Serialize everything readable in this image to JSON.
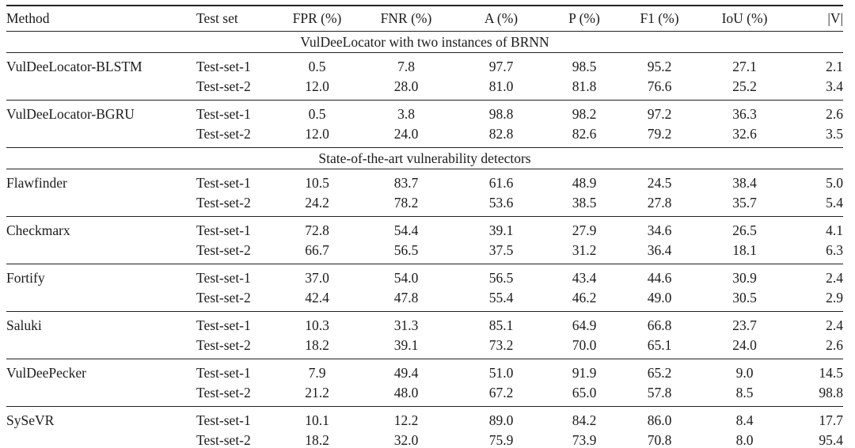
{
  "table": {
    "columns": [
      "Method",
      "Test set",
      "FPR (%)",
      "FNR (%)",
      "A (%)",
      "P (%)",
      "F1 (%)",
      "IoU (%)",
      "|V|"
    ],
    "metric_keys": [
      "fpr",
      "fnr",
      "a",
      "p",
      "f1",
      "iou",
      "v"
    ],
    "sections": [
      {
        "title": "VulDeeLocator with two instances of BRNN",
        "groups": [
          {
            "method": "VulDeeLocator-BLSTM",
            "rows": [
              [
                "Test-set-1",
                "0.5",
                "7.8",
                "97.7",
                "98.5",
                "95.2",
                "27.1",
                "2.1"
              ],
              [
                "Test-set-2",
                "12.0",
                "28.0",
                "81.0",
                "81.8",
                "76.6",
                "25.2",
                "3.4"
              ]
            ]
          },
          {
            "method": "VulDeeLocator-BGRU",
            "rows": [
              [
                "Test-set-1",
                "0.5",
                "3.8",
                "98.8",
                "98.2",
                "97.2",
                "36.3",
                "2.6"
              ],
              [
                "Test-set-2",
                "12.0",
                "24.0",
                "82.8",
                "82.6",
                "79.2",
                "32.6",
                "3.5"
              ]
            ]
          }
        ]
      },
      {
        "title": "State-of-the-art vulnerability detectors",
        "groups": [
          {
            "method": "Flawfinder",
            "rows": [
              [
                "Test-set-1",
                "10.5",
                "83.7",
                "61.6",
                "48.9",
                "24.5",
                "38.4",
                "5.0"
              ],
              [
                "Test-set-2",
                "24.2",
                "78.2",
                "53.6",
                "38.5",
                "27.8",
                "35.7",
                "5.4"
              ]
            ]
          },
          {
            "method": "Checkmarx",
            "rows": [
              [
                "Test-set-1",
                "72.8",
                "54.4",
                "39.1",
                "27.9",
                "34.6",
                "26.5",
                "4.1"
              ],
              [
                "Test-set-2",
                "66.7",
                "56.5",
                "37.5",
                "31.2",
                "36.4",
                "18.1",
                "6.3"
              ]
            ]
          },
          {
            "method": "Fortify",
            "rows": [
              [
                "Test-set-1",
                "37.0",
                "54.0",
                "56.5",
                "43.4",
                "44.6",
                "30.9",
                "2.4"
              ],
              [
                "Test-set-2",
                "42.4",
                "47.8",
                "55.4",
                "46.2",
                "49.0",
                "30.5",
                "2.9"
              ]
            ]
          },
          {
            "method": "Saluki",
            "rows": [
              [
                "Test-set-1",
                "10.3",
                "31.3",
                "85.1",
                "64.9",
                "66.8",
                "23.7",
                "2.4"
              ],
              [
                "Test-set-2",
                "18.2",
                "39.1",
                "73.2",
                "70.0",
                "65.1",
                "24.0",
                "2.6"
              ]
            ]
          },
          {
            "method": "VulDeePecker",
            "rows": [
              [
                "Test-set-1",
                "7.9",
                "49.4",
                "51.0",
                "91.9",
                "65.2",
                "9.0",
                "14.5"
              ],
              [
                "Test-set-2",
                "21.2",
                "48.0",
                "67.2",
                "65.0",
                "57.8",
                "8.5",
                "98.8"
              ]
            ]
          },
          {
            "method": "SySeVR",
            "rows": [
              [
                "Test-set-1",
                "10.1",
                "12.2",
                "89.0",
                "84.2",
                "86.0",
                "8.4",
                "17.7"
              ],
              [
                "Test-set-2",
                "18.2",
                "32.0",
                "75.9",
                "73.9",
                "70.8",
                "8.0",
                "95.4"
              ]
            ]
          }
        ]
      }
    ]
  }
}
